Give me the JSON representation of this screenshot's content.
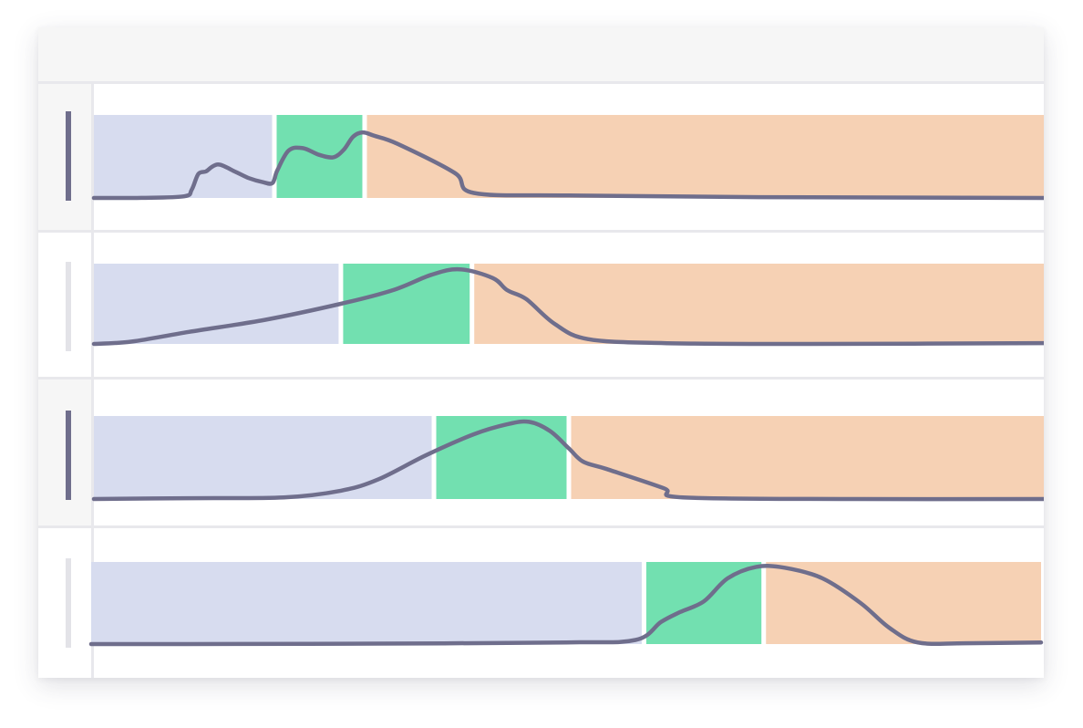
{
  "colors": {
    "phase_before": "#d7dcef",
    "phase_active": "#72e0b0",
    "phase_after": "#f6d1b4",
    "curve": "#6f6e8c",
    "marker_active": "#6f6e8c",
    "marker_inactive": "#e3e3e8"
  },
  "chart_data": {
    "type": "area",
    "rows": [
      {
        "marker": "active",
        "phases": [
          0.19,
          0.285
        ],
        "curve": [
          [
            0,
            0
          ],
          [
            0.05,
            0.001
          ],
          [
            0.095,
            0.02
          ],
          [
            0.103,
            0.1
          ],
          [
            0.11,
            0.29
          ],
          [
            0.118,
            0.32
          ],
          [
            0.125,
            0.38
          ],
          [
            0.133,
            0.4
          ],
          [
            0.15,
            0.31
          ],
          [
            0.163,
            0.24
          ],
          [
            0.178,
            0.19
          ],
          [
            0.188,
            0.18
          ],
          [
            0.193,
            0.33
          ],
          [
            0.205,
            0.57
          ],
          [
            0.22,
            0.6
          ],
          [
            0.237,
            0.52
          ],
          [
            0.252,
            0.49
          ],
          [
            0.263,
            0.58
          ],
          [
            0.273,
            0.74
          ],
          [
            0.283,
            0.79
          ],
          [
            0.295,
            0.75
          ],
          [
            0.32,
            0.65
          ],
          [
            0.38,
            0.3
          ],
          [
            0.4,
            0.06
          ],
          [
            0.5,
            0.03
          ],
          [
            0.7,
            0.01
          ],
          [
            1,
            0
          ]
        ]
      },
      {
        "marker": "inactive",
        "phases": [
          0.26,
          0.398
        ],
        "curve": [
          [
            0,
            0
          ],
          [
            0.04,
            0.03
          ],
          [
            0.1,
            0.15
          ],
          [
            0.18,
            0.3
          ],
          [
            0.26,
            0.5
          ],
          [
            0.315,
            0.67
          ],
          [
            0.355,
            0.86
          ],
          [
            0.385,
            0.93
          ],
          [
            0.42,
            0.82
          ],
          [
            0.435,
            0.67
          ],
          [
            0.455,
            0.56
          ],
          [
            0.485,
            0.25
          ],
          [
            0.52,
            0.06
          ],
          [
            0.6,
            0.01
          ],
          [
            0.75,
            0
          ],
          [
            1,
            0.01
          ]
        ]
      },
      {
        "marker": "active",
        "phases": [
          0.358,
          0.5
        ],
        "curve": [
          [
            0,
            0
          ],
          [
            0.1,
            0.01
          ],
          [
            0.2,
            0.02
          ],
          [
            0.26,
            0.1
          ],
          [
            0.3,
            0.24
          ],
          [
            0.35,
            0.53
          ],
          [
            0.4,
            0.78
          ],
          [
            0.435,
            0.9
          ],
          [
            0.458,
            0.93
          ],
          [
            0.48,
            0.82
          ],
          [
            0.5,
            0.61
          ],
          [
            0.515,
            0.45
          ],
          [
            0.54,
            0.36
          ],
          [
            0.6,
            0.13
          ],
          [
            0.62,
            0.02
          ],
          [
            0.8,
            0
          ],
          [
            1,
            0
          ]
        ]
      },
      {
        "marker": "inactive",
        "phases": [
          0.582,
          0.708
        ],
        "curve": [
          [
            0,
            0
          ],
          [
            0.1,
            0
          ],
          [
            0.3,
            0.005
          ],
          [
            0.5,
            0.02
          ],
          [
            0.573,
            0.05
          ],
          [
            0.6,
            0.27
          ],
          [
            0.62,
            0.39
          ],
          [
            0.645,
            0.52
          ],
          [
            0.67,
            0.8
          ],
          [
            0.7,
            0.94
          ],
          [
            0.73,
            0.93
          ],
          [
            0.77,
            0.8
          ],
          [
            0.81,
            0.5
          ],
          [
            0.84,
            0.2
          ],
          [
            0.87,
            0.02
          ],
          [
            0.92,
            0.01
          ],
          [
            1,
            0.02
          ]
        ]
      }
    ]
  }
}
